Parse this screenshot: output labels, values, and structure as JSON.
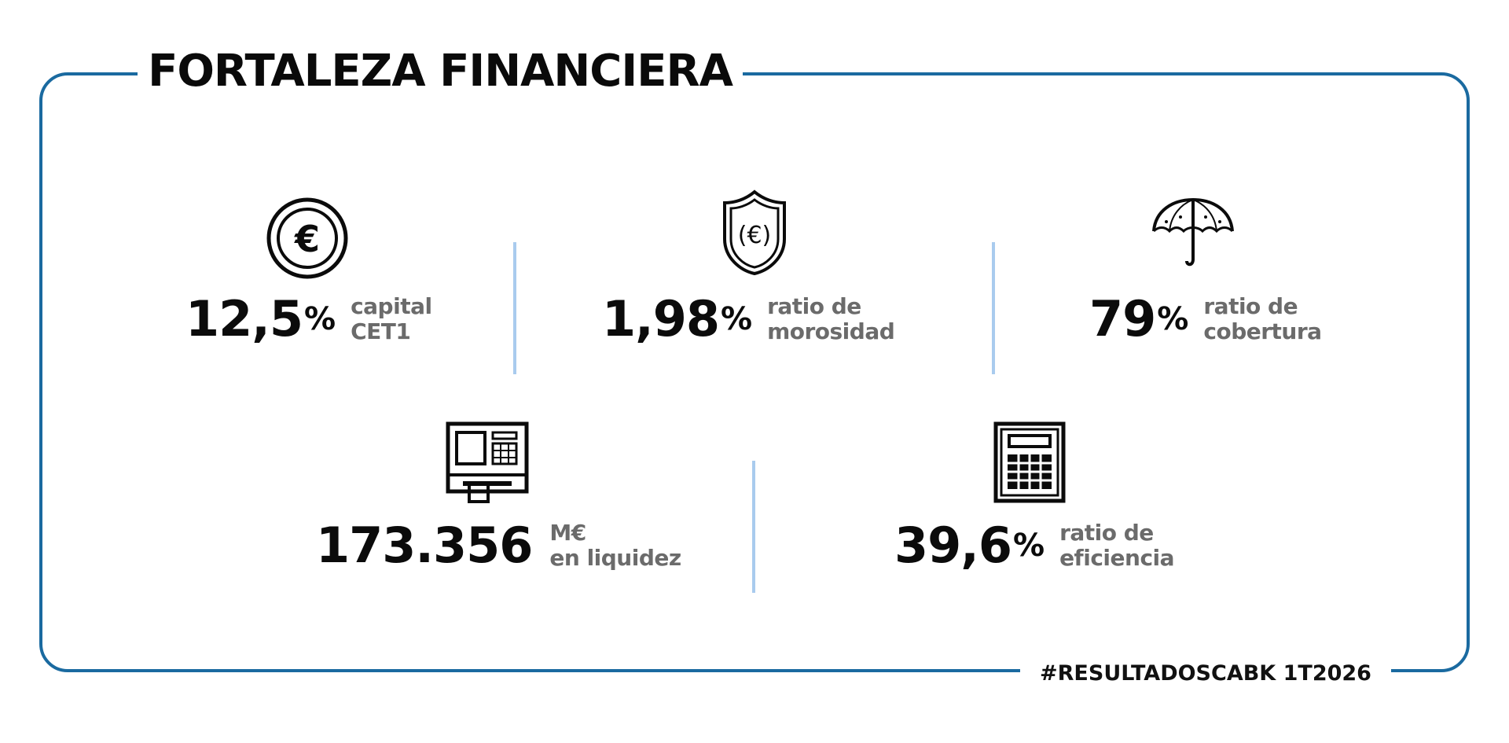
{
  "title": "FORTALEZA FINANCIERA",
  "footer": "#RESULTADOSCABK 1T2026",
  "colors": {
    "frame": "#1a6aa0",
    "divider": "#a9cbee",
    "value": "#0b0b0b",
    "label": "#6b6b6b"
  },
  "metrics": [
    {
      "icon": "euro-coin-icon",
      "value": "12,5",
      "unit": "%",
      "label_line1": "capital",
      "label_line2": "CET1"
    },
    {
      "icon": "euro-shield-icon",
      "value": "1,98",
      "unit": "%",
      "label_line1": "ratio de",
      "label_line2": "morosidad"
    },
    {
      "icon": "umbrella-icon",
      "value": "79",
      "unit": "%",
      "label_line1": "ratio de",
      "label_line2": "cobertura"
    },
    {
      "icon": "atm-icon",
      "value": "173.356",
      "unit": "",
      "label_line1": "M€",
      "label_line2": "en liquidez"
    },
    {
      "icon": "calculator-icon",
      "value": "39,6",
      "unit": "%",
      "label_line1": "ratio de",
      "label_line2": "eficiencia"
    }
  ]
}
